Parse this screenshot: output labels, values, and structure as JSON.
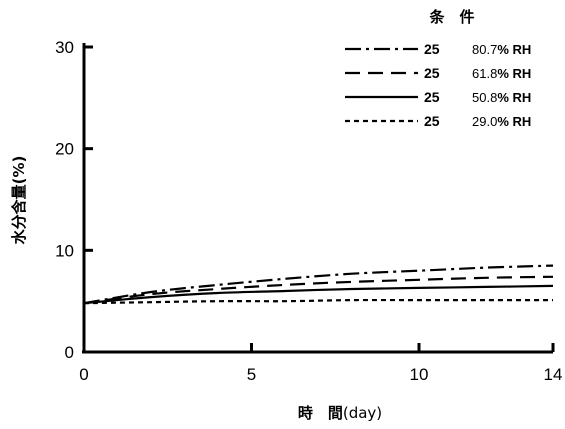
{
  "chart_data": {
    "type": "line",
    "title": "",
    "xlabel": "時　間",
    "xlabel_unit": "day",
    "ylabel": "水分含量",
    "ylabel_unit": "%",
    "xlim": [
      0,
      14
    ],
    "ylim": [
      0,
      30
    ],
    "x_ticks": [
      0,
      5,
      10,
      14
    ],
    "y_ticks": [
      0,
      10,
      20,
      30
    ],
    "grid": false,
    "legend_title": "条　件",
    "legend_position": "top-right",
    "series": [
      {
        "name": "25　80.7% RH",
        "temp": "25",
        "rh_value": "80.7",
        "rh_unit": "% RH",
        "dash": "dashdot",
        "x": [
          0,
          2,
          4,
          6,
          8,
          10,
          12,
          14
        ],
        "y": [
          4.8,
          5.9,
          6.6,
          7.2,
          7.7,
          8.0,
          8.3,
          8.5
        ]
      },
      {
        "name": "25　61.8% RH",
        "temp": "25",
        "rh_value": "61.8",
        "rh_unit": "% RH",
        "dash": "dashed",
        "x": [
          0,
          2,
          4,
          6,
          8,
          10,
          12,
          14
        ],
        "y": [
          4.8,
          5.7,
          6.2,
          6.6,
          6.9,
          7.1,
          7.3,
          7.4
        ]
      },
      {
        "name": "25　50.8% RH",
        "temp": "25",
        "rh_value": "50.8",
        "rh_unit": "% RH",
        "dash": "solid",
        "x": [
          0,
          2,
          4,
          6,
          8,
          10,
          12,
          14
        ],
        "y": [
          4.8,
          5.4,
          5.8,
          6.0,
          6.2,
          6.3,
          6.4,
          6.5
        ]
      },
      {
        "name": "25　29.0% RH",
        "temp": "25",
        "rh_value": "29.0",
        "rh_unit": "% RH",
        "dash": "dotted",
        "x": [
          0,
          2,
          4,
          6,
          8,
          10,
          12,
          14
        ],
        "y": [
          4.8,
          4.9,
          5.0,
          5.0,
          5.1,
          5.1,
          5.1,
          5.1
        ]
      }
    ]
  }
}
